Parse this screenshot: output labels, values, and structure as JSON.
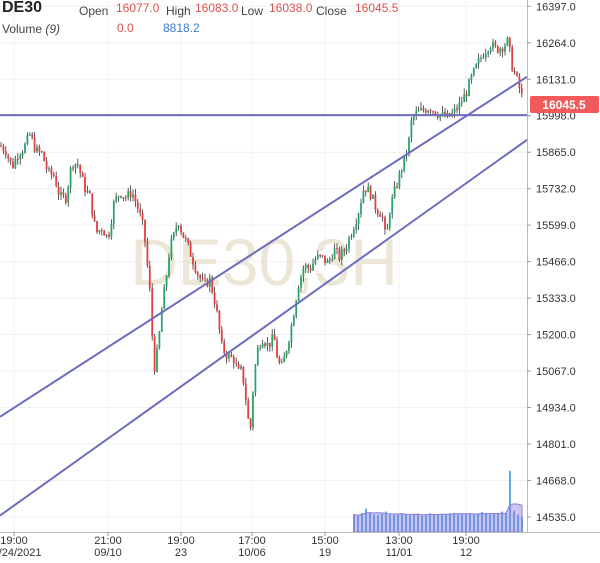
{
  "header": {
    "symbol": "DE30",
    "open_label": "Open",
    "open_value": "16077.0",
    "high_label": "High",
    "high_value": "16083.0",
    "low_label": "Low",
    "low_value": "16038.0",
    "close_label": "Close",
    "close_value": "16045.5",
    "volume_label": "Volume",
    "volume_period": "(9)",
    "volume_value": "0.0",
    "volume_ma_value": "8818.2"
  },
  "watermark": "DE30,3H",
  "price_tag": "16045.5",
  "colors": {
    "up": "#27a567",
    "down": "#e04040",
    "wick": "#333333",
    "trendline": "#6c6cbf",
    "price_tag": "#f05a5a",
    "volume": "#5da9e9",
    "volume_ma": "#8b7fd6",
    "watermark": "#ece6d6"
  },
  "chart_data": {
    "type": "candlestick",
    "y_ticks": [
      "16397.0",
      "16264.0",
      "16131.0",
      "15998.0",
      "15865.0",
      "15732.0",
      "15599.0",
      "15466.0",
      "15333.0",
      "15200.0",
      "15067.0",
      "14934.0",
      "14801.0",
      "14668.0",
      "14535.0"
    ],
    "ylim": [
      14480,
      16420
    ],
    "x_ticks": [
      {
        "time": "19:00",
        "date": "08/24/2021"
      },
      {
        "time": "21:00",
        "date": "09/10"
      },
      {
        "time": "19:00",
        "date": "23"
      },
      {
        "time": "17:00",
        "date": "10/06"
      },
      {
        "time": "15:00",
        "date": "19"
      },
      {
        "time": "13:00",
        "date": "11/01"
      },
      {
        "time": "19:00",
        "date": "12"
      }
    ],
    "close_path": [
      [
        0,
        15890
      ],
      [
        6,
        15870
      ],
      [
        12,
        15810
      ],
      [
        18,
        15860
      ],
      [
        24,
        15880
      ],
      [
        30,
        15930
      ],
      [
        36,
        15870
      ],
      [
        42,
        15860
      ],
      [
        48,
        15790
      ],
      [
        54,
        15780
      ],
      [
        60,
        15700
      ],
      [
        66,
        15700
      ],
      [
        72,
        15830
      ],
      [
        78,
        15820
      ],
      [
        84,
        15740
      ],
      [
        90,
        15700
      ],
      [
        96,
        15570
      ],
      [
        102,
        15590
      ],
      [
        108,
        15550
      ],
      [
        114,
        15680
      ],
      [
        120,
        15720
      ],
      [
        126,
        15700
      ],
      [
        132,
        15720
      ],
      [
        138,
        15660
      ],
      [
        144,
        15580
      ],
      [
        150,
        15350
      ],
      [
        154,
        15070
      ],
      [
        158,
        15150
      ],
      [
        162,
        15300
      ],
      [
        166,
        15400
      ],
      [
        170,
        15520
      ],
      [
        174,
        15560
      ],
      [
        178,
        15620
      ],
      [
        182,
        15570
      ],
      [
        186,
        15540
      ],
      [
        192,
        15480
      ],
      [
        198,
        15420
      ],
      [
        204,
        15380
      ],
      [
        210,
        15400
      ],
      [
        216,
        15300
      ],
      [
        222,
        15150
      ],
      [
        228,
        15120
      ],
      [
        234,
        15110
      ],
      [
        238,
        15060
      ],
      [
        242,
        15070
      ],
      [
        246,
        14960
      ],
      [
        250,
        14830
      ],
      [
        254,
        15050
      ],
      [
        258,
        15150
      ],
      [
        262,
        15190
      ],
      [
        268,
        15160
      ],
      [
        274,
        15190
      ],
      [
        278,
        15100
      ],
      [
        282,
        15080
      ],
      [
        286,
        15140
      ],
      [
        292,
        15240
      ],
      [
        298,
        15380
      ],
      [
        304,
        15450
      ],
      [
        310,
        15440
      ],
      [
        316,
        15480
      ],
      [
        322,
        15480
      ],
      [
        328,
        15460
      ],
      [
        334,
        15510
      ],
      [
        340,
        15480
      ],
      [
        346,
        15520
      ],
      [
        352,
        15580
      ],
      [
        358,
        15640
      ],
      [
        364,
        15740
      ],
      [
        370,
        15720
      ],
      [
        376,
        15660
      ],
      [
        382,
        15640
      ],
      [
        386,
        15540
      ],
      [
        390,
        15660
      ],
      [
        396,
        15740
      ],
      [
        402,
        15810
      ],
      [
        408,
        15880
      ],
      [
        412,
        15990
      ],
      [
        418,
        16010
      ],
      [
        424,
        16020
      ],
      [
        430,
        16030
      ],
      [
        436,
        16010
      ],
      [
        442,
        16000
      ],
      [
        448,
        15990
      ],
      [
        454,
        16010
      ],
      [
        460,
        16040
      ],
      [
        466,
        16080
      ],
      [
        472,
        16140
      ],
      [
        478,
        16190
      ],
      [
        484,
        16230
      ],
      [
        490,
        16260
      ],
      [
        496,
        16240
      ],
      [
        502,
        16250
      ],
      [
        508,
        16270
      ],
      [
        512,
        16180
      ],
      [
        516,
        16140
      ],
      [
        520,
        16090
      ],
      [
        524,
        16045
      ]
    ],
    "volume_bars": [
      [
        354,
        6000
      ],
      [
        358,
        5500
      ],
      [
        362,
        6500
      ],
      [
        366,
        8000
      ],
      [
        370,
        6800
      ],
      [
        374,
        6000
      ],
      [
        378,
        5800
      ],
      [
        382,
        6200
      ],
      [
        386,
        7000
      ],
      [
        390,
        6000
      ],
      [
        394,
        5800
      ],
      [
        398,
        6000
      ],
      [
        402,
        6400
      ],
      [
        406,
        6200
      ],
      [
        410,
        5800
      ],
      [
        414,
        6000
      ],
      [
        418,
        6200
      ],
      [
        422,
        5600
      ],
      [
        426,
        6000
      ],
      [
        430,
        6400
      ],
      [
        434,
        6000
      ],
      [
        438,
        5800
      ],
      [
        442,
        6200
      ],
      [
        446,
        6000
      ],
      [
        450,
        6400
      ],
      [
        454,
        6600
      ],
      [
        458,
        6200
      ],
      [
        462,
        6000
      ],
      [
        466,
        6400
      ],
      [
        470,
        6200
      ],
      [
        474,
        6000
      ],
      [
        478,
        6400
      ],
      [
        482,
        6800
      ],
      [
        486,
        6400
      ],
      [
        490,
        6000
      ],
      [
        494,
        6200
      ],
      [
        498,
        6400
      ],
      [
        502,
        7000
      ],
      [
        506,
        6600
      ],
      [
        510,
        21000
      ],
      [
        514,
        7200
      ],
      [
        518,
        6000
      ],
      [
        522,
        5000
      ]
    ],
    "volume_max": 24000,
    "trendlines": [
      {
        "name": "resistance",
        "points": [
          [
            0,
            16000
          ],
          [
            527,
            16000
          ]
        ]
      },
      {
        "name": "channel-upper",
        "points": [
          [
            0,
            14900
          ],
          [
            527,
            16140
          ]
        ]
      },
      {
        "name": "channel-lower",
        "points": [
          [
            0,
            14540
          ],
          [
            527,
            15910
          ]
        ]
      }
    ]
  }
}
